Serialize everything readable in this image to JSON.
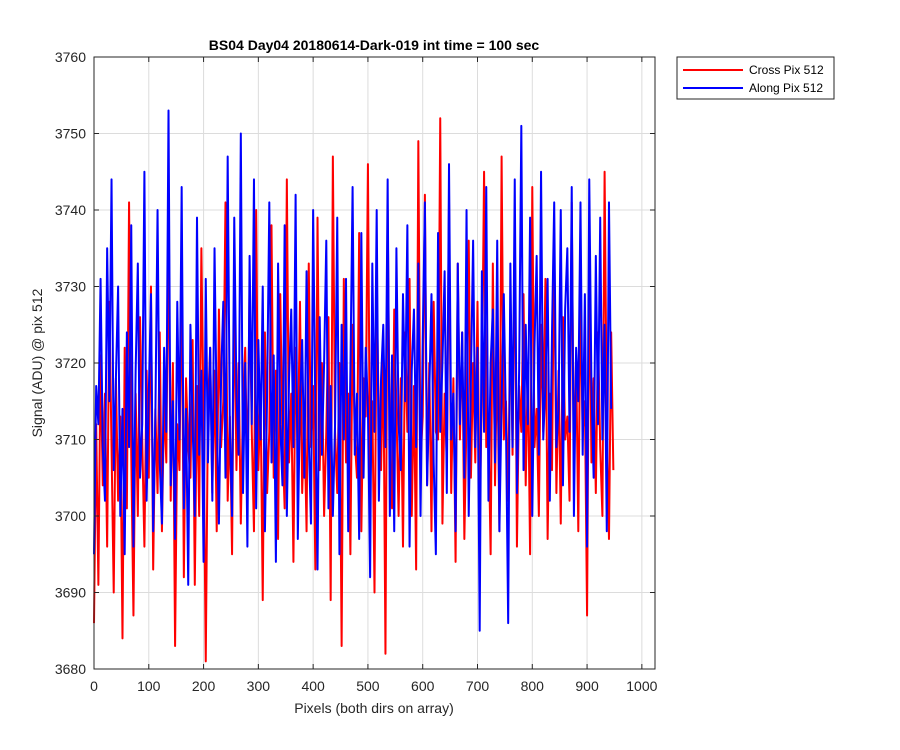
{
  "chart_data": {
    "type": "line",
    "title": "BS04 Day04 20180614-Dark-019 int time = 100 sec",
    "xlabel": "Pixels (both dirs on array)",
    "ylabel": "Signal (ADU) @ pix 512",
    "xlim": [
      0,
      1024
    ],
    "ylim": [
      3680,
      3760
    ],
    "xticks": [
      0,
      100,
      200,
      300,
      400,
      500,
      600,
      700,
      800,
      900,
      1000
    ],
    "yticks": [
      3680,
      3690,
      3700,
      3710,
      3720,
      3730,
      3740,
      3750,
      3760
    ],
    "grid": true,
    "legend_position": "outside-top-right",
    "series": [
      {
        "name": "Cross Pix 512",
        "color": "#ff0000",
        "samples_per_point": 4,
        "y": [
          3686,
          3712,
          3691,
          3721,
          3704,
          3716,
          3696,
          3728,
          3709,
          3690,
          3718,
          3702,
          3713,
          3684,
          3722,
          3701,
          3741,
          3708,
          3687,
          3716,
          3700,
          3726,
          3710,
          3696,
          3719,
          3705,
          3730,
          3693,
          3714,
          3703,
          3724,
          3698,
          3715,
          3707,
          3739,
          3702,
          3720,
          3683,
          3712,
          3706,
          3733,
          3692,
          3718,
          3709,
          3705,
          3723,
          3691,
          3717,
          3700,
          3735,
          3712,
          3681,
          3714,
          3722,
          3703,
          3719,
          3698,
          3727,
          3709,
          3715,
          3741,
          3702,
          3713,
          3695,
          3731,
          3706,
          3720,
          3699,
          3715,
          3722,
          3704,
          3730,
          3711,
          3698,
          3740,
          3706,
          3716,
          3689,
          3724,
          3703,
          3711,
          3738,
          3705,
          3719,
          3697,
          3729,
          3710,
          3701,
          3744,
          3707,
          3716,
          3694,
          3722,
          3708,
          3728,
          3703,
          3713,
          3698,
          3733,
          3709,
          3717,
          3693,
          3739,
          3706,
          3720,
          3700,
          3711,
          3726,
          3689,
          3747,
          3711,
          3703,
          3720,
          3683,
          3731,
          3707,
          3716,
          3695,
          3725,
          3710,
          3705,
          3737,
          3698,
          3718,
          3713,
          3746,
          3703,
          3715,
          3690,
          3730,
          3712,
          3706,
          3722,
          3682,
          3740,
          3709,
          3701,
          3727,
          3714,
          3700,
          3718,
          3696,
          3724,
          3711,
          3731,
          3700,
          3717,
          3693,
          3749,
          3707,
          3713,
          3742,
          3704,
          3720,
          3698,
          3728,
          3711,
          3710,
          3752,
          3699,
          3716,
          3707,
          3741,
          3703,
          3718,
          3694,
          3733,
          3710,
          3724,
          3697,
          3713,
          3736,
          3705,
          3720,
          3707,
          3728,
          3700,
          3716,
          3745,
          3709,
          3712,
          3695,
          3733,
          3704,
          3722,
          3698,
          3747,
          3710,
          3715,
          3702,
          3727,
          3708,
          3738,
          3696,
          3717,
          3711,
          3729,
          3704,
          3720,
          3695,
          3743,
          3709,
          3714,
          3700,
          3725,
          3711,
          3731,
          3697,
          3716,
          3706,
          3737,
          3703,
          3719,
          3699,
          3726,
          3710,
          3713,
          3702,
          3741,
          3706,
          3721,
          3698,
          3729,
          3711,
          3715,
          3687,
          3734,
          3707,
          3718,
          3703,
          3724,
          3709,
          3700,
          3745,
          3712,
          3697,
          3724,
          3706
        ]
      },
      {
        "name": "Along Pix 512",
        "color": "#0000ff",
        "samples_per_point": 4,
        "y": [
          3695,
          3717,
          3712,
          3731,
          3709,
          3702,
          3735,
          3715,
          3744,
          3706,
          3718,
          3730,
          3700,
          3714,
          3695,
          3724,
          3709,
          3738,
          3696,
          3719,
          3733,
          3705,
          3712,
          3745,
          3702,
          3716,
          3729,
          3698,
          3713,
          3740,
          3707,
          3699,
          3722,
          3711,
          3753,
          3704,
          3715,
          3697,
          3728,
          3710,
          3743,
          3701,
          3714,
          3691,
          3725,
          3712,
          3700,
          3739,
          3708,
          3719,
          3694,
          3731,
          3707,
          3722,
          3702,
          3735,
          3713,
          3699,
          3718,
          3728,
          3705,
          3747,
          3711,
          3700,
          3739,
          3716,
          3708,
          3750,
          3703,
          3720,
          3696,
          3734,
          3712,
          3744,
          3701,
          3723,
          3710,
          3730,
          3698,
          3716,
          3741,
          3707,
          3721,
          3694,
          3733,
          3712,
          3704,
          3738,
          3700,
          3718,
          3727,
          3709,
          3742,
          3697,
          3715,
          3723,
          3705,
          3732,
          3710,
          3699,
          3740,
          3714,
          3693,
          3726,
          3708,
          3720,
          3736,
          3701,
          3717,
          3700,
          3712,
          3739,
          3695,
          3725,
          3710,
          3731,
          3698,
          3719,
          3743,
          3708,
          3716,
          3697,
          3737,
          3705,
          3722,
          3714,
          3692,
          3733,
          3711,
          3740,
          3702,
          3718,
          3725,
          3709,
          3744,
          3700,
          3721,
          3698,
          3735,
          3712,
          3706,
          3729,
          3715,
          3738,
          3696,
          3719,
          3727,
          3709,
          3733,
          3700,
          3723,
          3741,
          3704,
          3716,
          3729,
          3707,
          3695,
          3737,
          3711,
          3720,
          3732,
          3703,
          3746,
          3710,
          3716,
          3698,
          3733,
          3712,
          3724,
          3705,
          3740,
          3700,
          3718,
          3736,
          3709,
          3722,
          3685,
          3732,
          3711,
          3743,
          3702,
          3720,
          3727,
          3707,
          3736,
          3698,
          3715,
          3729,
          3712,
          3686,
          3733,
          3709,
          3744,
          3703,
          3719,
          3751,
          3706,
          3725,
          3712,
          3739,
          3700,
          3722,
          3734,
          3708,
          3745,
          3710,
          3717,
          3731,
          3702,
          3724,
          3741,
          3709,
          3714,
          3740,
          3704,
          3727,
          3735,
          3711,
          3743,
          3700,
          3722,
          3715,
          3741,
          3708,
          3729,
          3696,
          3744,
          3717,
          3705,
          3734,
          3712,
          3739,
          3710,
          3725,
          3698,
          3741,
          3714
        ]
      }
    ]
  }
}
